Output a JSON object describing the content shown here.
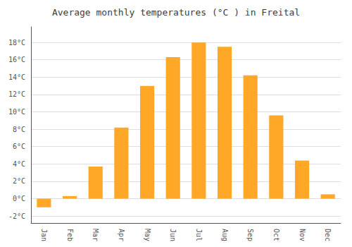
{
  "chart_data": {
    "type": "bar",
    "title": "Average monthly temperatures (°C ) in Freital",
    "categories": [
      "Jan",
      "Feb",
      "Mar",
      "Apr",
      "May",
      "Jun",
      "Jul",
      "Aug",
      "Sep",
      "Oct",
      "Nov",
      "Dec"
    ],
    "values": [
      -1.0,
      0.3,
      3.7,
      8.2,
      13.0,
      16.3,
      18.0,
      17.5,
      14.2,
      9.6,
      4.4,
      0.5
    ],
    "color": "#FFA726",
    "ylim": [
      -2.8,
      19.8
    ],
    "yticks": [
      {
        "value": -2,
        "label": "-2°C"
      },
      {
        "value": 0,
        "label": "0°C"
      },
      {
        "value": 2,
        "label": "2°C"
      },
      {
        "value": 4,
        "label": "4°C"
      },
      {
        "value": 6,
        "label": "6°C"
      },
      {
        "value": 8,
        "label": "8°C"
      },
      {
        "value": 10,
        "label": "10°C"
      },
      {
        "value": 12,
        "label": "12°C"
      },
      {
        "value": 14,
        "label": "14°C"
      },
      {
        "value": 16,
        "label": "16°C"
      },
      {
        "value": 18,
        "label": "18°C"
      }
    ],
    "grid": true
  }
}
